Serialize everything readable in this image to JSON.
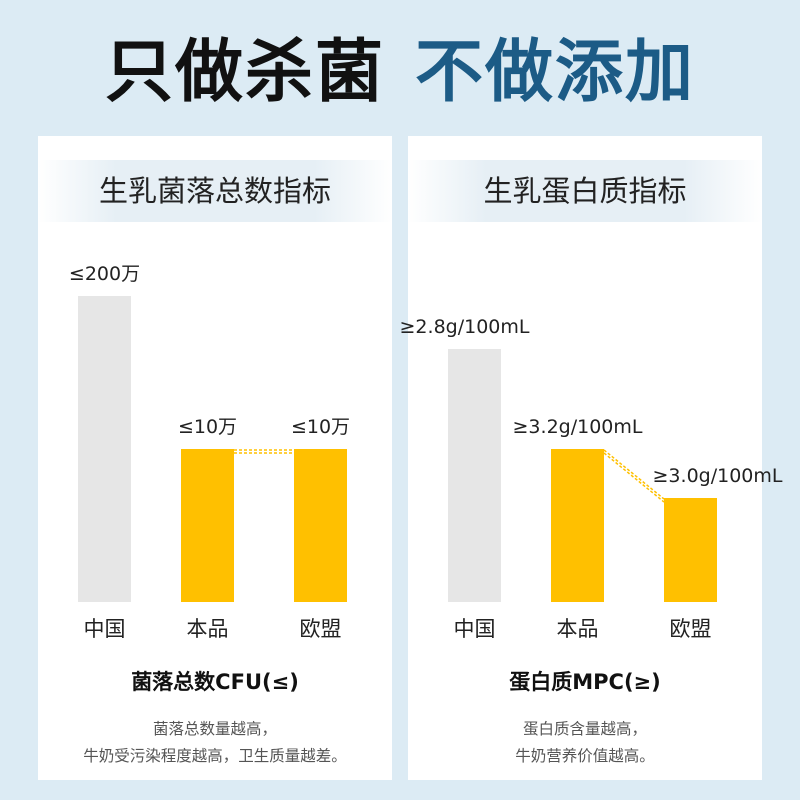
{
  "headline": {
    "part1": "只做杀菌",
    "part2": "不做添加"
  },
  "colors": {
    "china_bar": "#e6e6e6",
    "highlight_bar": "#ffc000",
    "accent": "#1c5b86",
    "connector": "#ffc000"
  },
  "panels": [
    {
      "title": "生乳菌落总数指标",
      "metric_title": "菌落总数CFU(≤)",
      "desc_lines": [
        "菌落总数量越高，",
        "牛奶受污染程度越高，卫生质量越差。"
      ]
    },
    {
      "title": "生乳蛋白质指标",
      "metric_title": "蛋白质MPC(≥)",
      "desc_lines": [
        "蛋白质含量越高，",
        "牛奶营养价值越高。"
      ]
    }
  ],
  "chart_data": [
    {
      "type": "bar",
      "categories": [
        "中国",
        "本品",
        "欧盟"
      ],
      "values": [
        200,
        10,
        10
      ],
      "value_labels": [
        "≤200万",
        "≤10万",
        "≤10万"
      ],
      "unit": "万"
    },
    {
      "type": "bar",
      "categories": [
        "中国",
        "本品",
        "欧盟"
      ],
      "values": [
        2.8,
        3.2,
        3.0
      ],
      "value_labels": [
        "≥2.8g/100mL",
        "≥3.2g/100mL",
        "≥3.0g/100mL"
      ],
      "unit": "g/100mL"
    }
  ]
}
